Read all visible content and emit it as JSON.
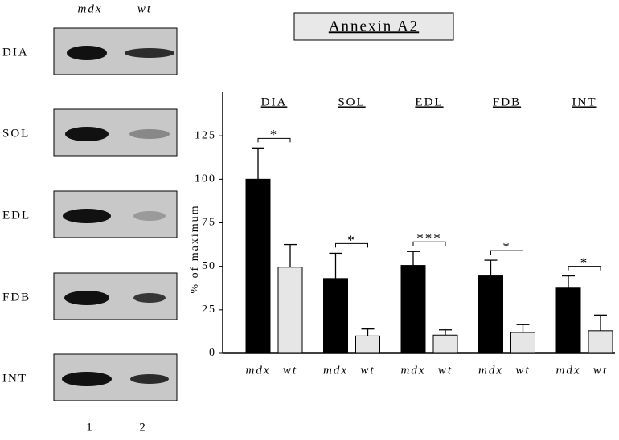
{
  "chart_data": {
    "type": "bar",
    "title": "Annexin A2",
    "y_label": "% of maximum",
    "categories": [
      "DIA",
      "SOL",
      "EDL",
      "FDB",
      "INT"
    ],
    "series": [
      {
        "name": "mdx",
        "color": "#000000",
        "values": [
          100,
          43,
          50.5,
          44.5,
          37.5
        ],
        "errors": [
          18,
          14.5,
          8,
          9,
          7
        ]
      },
      {
        "name": "wt",
        "color": "#e6e6e6",
        "values": [
          49.5,
          10,
          10.5,
          12,
          13
        ],
        "errors": [
          13,
          4,
          3,
          4.5,
          9
        ]
      }
    ],
    "annotations": [
      "*",
      "*",
      "***",
      "*",
      "*"
    ],
    "ylim": [
      0,
      150
    ],
    "yticks": [
      0,
      25,
      50,
      75,
      100,
      125
    ]
  },
  "blot": {
    "lane_numbers": [
      "1",
      "2"
    ]
  }
}
